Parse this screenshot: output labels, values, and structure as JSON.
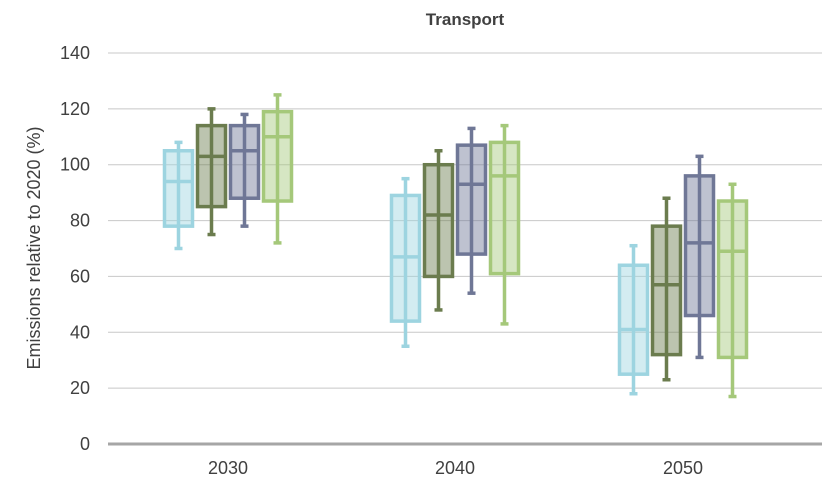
{
  "chart_data": {
    "type": "box",
    "title": "Transport",
    "xlabel": "",
    "ylabel": "Emissions relative to 2020 (%)",
    "ylim": [
      0,
      140
    ],
    "yticks": [
      0,
      20,
      40,
      60,
      80,
      100,
      120,
      140
    ],
    "grid": true,
    "categories": [
      "2030",
      "2040",
      "2050"
    ],
    "series": [
      {
        "color": "#9dd4e0",
        "boxes": [
          {
            "min": 70,
            "q1": 78,
            "median": 94,
            "q3": 105,
            "max": 108
          },
          {
            "min": 35,
            "q1": 44,
            "median": 67,
            "q3": 89,
            "max": 95
          },
          {
            "min": 18,
            "q1": 25,
            "median": 41,
            "q3": 64,
            "max": 71
          }
        ]
      },
      {
        "color": "#6b7c4e",
        "boxes": [
          {
            "min": 75,
            "q1": 85,
            "median": 103,
            "q3": 114,
            "max": 120
          },
          {
            "min": 48,
            "q1": 60,
            "median": 82,
            "q3": 100,
            "max": 105
          },
          {
            "min": 23,
            "q1": 32,
            "median": 57,
            "q3": 78,
            "max": 88
          }
        ]
      },
      {
        "color": "#6f7796",
        "boxes": [
          {
            "min": 78,
            "q1": 88,
            "median": 105,
            "q3": 114,
            "max": 118
          },
          {
            "min": 54,
            "q1": 68,
            "median": 93,
            "q3": 107,
            "max": 113
          },
          {
            "min": 31,
            "q1": 46,
            "median": 72,
            "q3": 96,
            "max": 103
          }
        ]
      },
      {
        "color": "#a5c87a",
        "boxes": [
          {
            "min": 72,
            "q1": 87,
            "median": 110,
            "q3": 119,
            "max": 125
          },
          {
            "min": 43,
            "q1": 61,
            "median": 96,
            "q3": 108,
            "max": 114
          },
          {
            "min": 17,
            "q1": 31,
            "median": 69,
            "q3": 87,
            "max": 93
          }
        ]
      }
    ]
  }
}
